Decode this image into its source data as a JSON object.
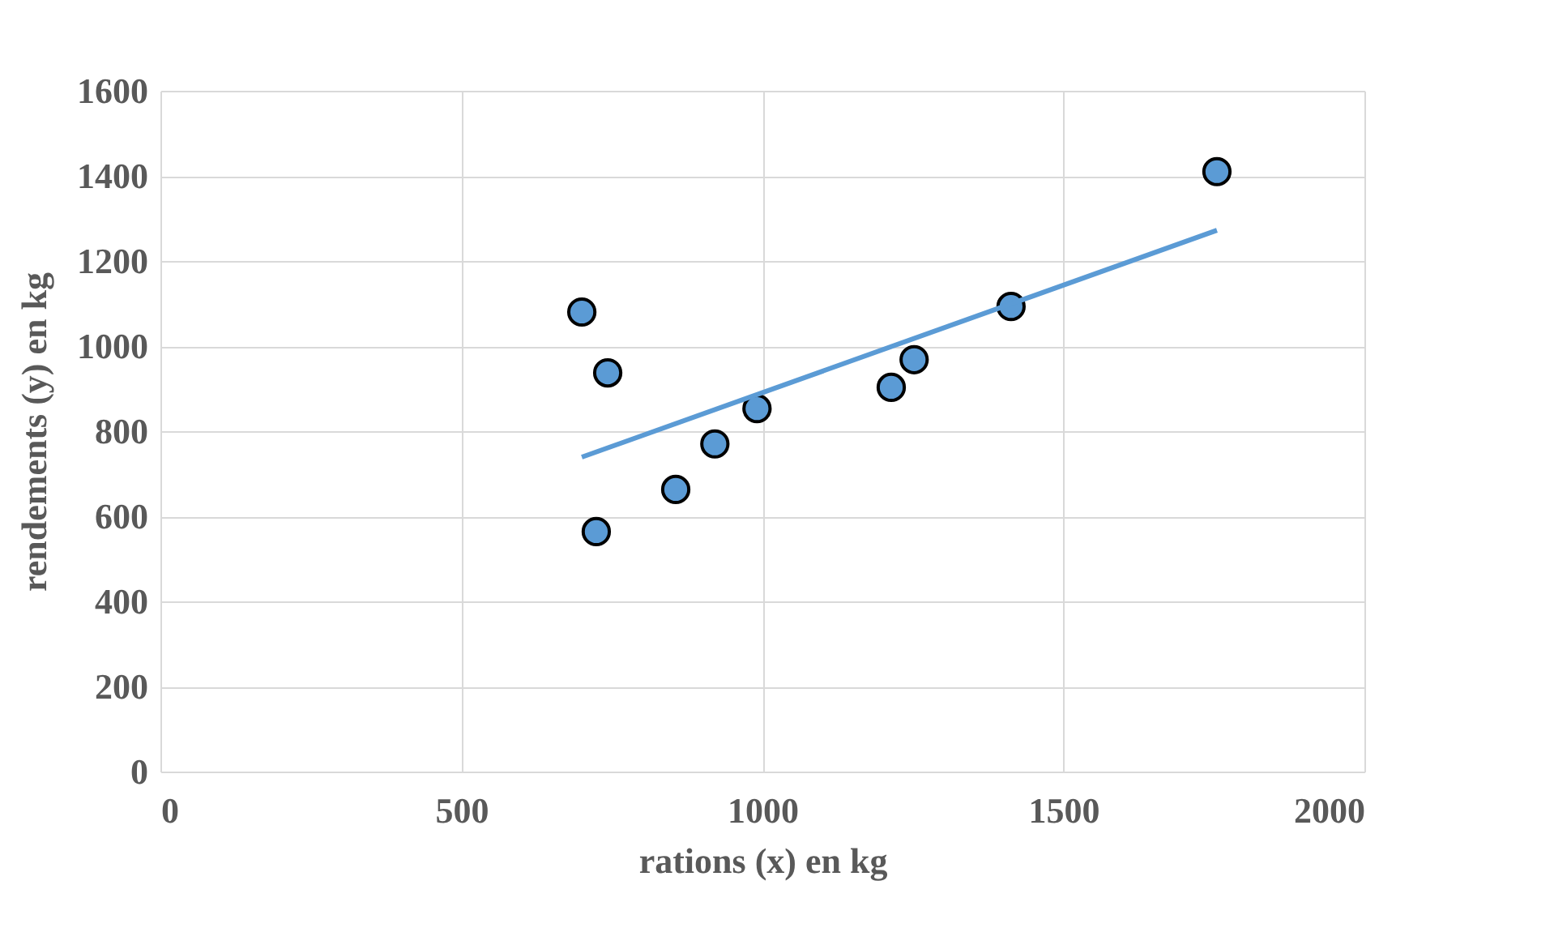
{
  "chart_data": {
    "type": "scatter",
    "xlabel": "rations (x) en kg",
    "ylabel": "rendements (y) en kg",
    "xlim": [
      0,
      2000
    ],
    "xticks": [
      0,
      500,
      1000,
      1500,
      2000
    ],
    "ylim": [
      0,
      1600
    ],
    "yticks": [
      0,
      200,
      400,
      600,
      800,
      1000,
      1200,
      1400,
      1600
    ],
    "grid": true,
    "series": [
      {
        "marker": "circle",
        "color": "#5b9bd5",
        "x": [
          700,
          743,
          724,
          856,
          921,
          991,
          1214,
          1252,
          1413,
          1755
        ],
        "values": [
          1080,
          937,
          564,
          663,
          770,
          853,
          903,
          968,
          1093,
          1410
        ]
      },
      {
        "type": "line",
        "color": "#5b9bd5",
        "x": [
          700,
          1755
        ],
        "values": [
          739,
          1272
        ]
      }
    ]
  }
}
